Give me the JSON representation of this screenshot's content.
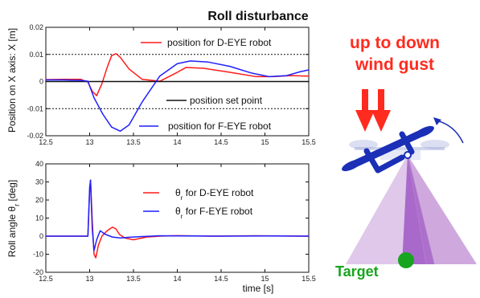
{
  "title": "Roll disturbance",
  "colors": {
    "red": "#ff1a1a",
    "blue": "#1f1fff",
    "black": "#111111",
    "target": "#17a51f",
    "gust": "#ff2b1f",
    "robot": "#1b2fb7",
    "fov_dark": "#a25bc5",
    "fov_light": "#dcc2e8"
  },
  "top_chart": {
    "ylabel": "Position on X axis: X [m]",
    "x_ticks": [
      "12.5",
      "13",
      "13.5",
      "14",
      "14.5",
      "15",
      "15.5"
    ],
    "y_ticks": [
      "0.02",
      "0.01",
      "0",
      "-0.01",
      "-0.02"
    ],
    "legend": [
      {
        "label": "position for D-EYE robot",
        "color": "#ff1a1a"
      },
      {
        "label": "position set point",
        "color": "#111111"
      },
      {
        "label": "position for F-EYE robot",
        "color": "#1f1fff"
      }
    ]
  },
  "bottom_chart": {
    "ylabel_prefix": "Roll angle θ",
    "ylabel_sub": "r",
    "ylabel_suffix": " [deg]",
    "xlabel": "time [s]",
    "x_ticks": [
      "12.5",
      "13",
      "13.5",
      "14",
      "14.5",
      "15",
      "15.5"
    ],
    "y_ticks": [
      "40",
      "30",
      "20",
      "10",
      "0",
      "-10",
      "-20"
    ],
    "legend": [
      {
        "prefix": "θ",
        "sub": "r",
        "suffix": " for D-EYE robot",
        "color": "#ff1a1a"
      },
      {
        "prefix": "θ",
        "sub": "r",
        "suffix": " for F-EYE robot",
        "color": "#1f1fff"
      }
    ]
  },
  "illustration": {
    "gust_line_1": "up to down",
    "gust_line_2": "wind gust",
    "target_label": "Target",
    "robot_icon": "quadrotor-robot-icon",
    "arrow_icon": "down-arrow-icon",
    "target_icon": "target-dot-icon"
  },
  "chart_data": [
    {
      "type": "line",
      "title": "Roll disturbance",
      "xlabel": "",
      "ylabel": "Position on X axis: X [m]",
      "xlim": [
        12.5,
        15.5
      ],
      "ylim": [
        -0.02,
        0.02
      ],
      "grid": false,
      "reference_lines": [
        0.01,
        0,
        -0.01
      ],
      "legend_position": "right",
      "series": [
        {
          "name": "position for D-EYE robot",
          "x": [
            12.5,
            12.7,
            12.9,
            12.98,
            13.03,
            13.08,
            13.14,
            13.2,
            13.25,
            13.3,
            13.35,
            13.45,
            13.6,
            13.8,
            14.0,
            14.1,
            14.3,
            14.6,
            14.9,
            15.1,
            15.3,
            15.5
          ],
          "y": [
            0.0007,
            0.0008,
            0.0008,
            -0.0002,
            -0.0036,
            -0.0052,
            -0.0008,
            0.0052,
            0.0095,
            0.0103,
            0.0089,
            0.0046,
            0.0008,
            0.0001,
            0.0034,
            0.0052,
            0.0049,
            0.0034,
            0.0018,
            0.0018,
            0.0022,
            0.002
          ]
        },
        {
          "name": "position set point",
          "x": [
            12.5,
            15.5
          ],
          "y": [
            0.0,
            0.0
          ]
        },
        {
          "name": "position for F-EYE robot",
          "x": [
            12.5,
            12.7,
            12.9,
            12.98,
            13.05,
            13.15,
            13.25,
            13.35,
            13.45,
            13.6,
            13.8,
            14.0,
            14.15,
            14.35,
            14.6,
            14.85,
            15.05,
            15.25,
            15.4,
            15.5
          ],
          "y": [
            0.0006,
            0.0006,
            0.0004,
            0.0001,
            -0.006,
            -0.012,
            -0.0168,
            -0.0183,
            -0.016,
            -0.0075,
            0.002,
            0.0066,
            0.0076,
            0.0072,
            0.0056,
            0.0031,
            0.0018,
            0.0022,
            0.0036,
            0.0043
          ]
        }
      ]
    },
    {
      "type": "line",
      "xlabel": "time [s]",
      "ylabel": "Roll angle θr [deg]",
      "xlim": [
        12.5,
        15.5
      ],
      "ylim": [
        -20,
        40
      ],
      "grid": false,
      "legend_position": "right",
      "series": [
        {
          "name": "θr for D-EYE robot",
          "x": [
            12.5,
            12.8,
            12.98,
            13.0,
            13.01,
            13.03,
            13.05,
            13.07,
            13.1,
            13.14,
            13.2,
            13.26,
            13.3,
            13.34,
            13.4,
            13.5,
            13.65,
            13.8,
            14.0,
            14.4,
            14.9,
            15.5
          ],
          "y": [
            0.0,
            0.0,
            0.0,
            25.0,
            31.0,
            8.0,
            -10.0,
            -12.0,
            -5.0,
            0.0,
            3.0,
            5.0,
            4.0,
            1.0,
            -1.0,
            -2.0,
            -0.5,
            0.0,
            0.3,
            0.0,
            0.2,
            0.0
          ]
        },
        {
          "name": "θr for F-EYE robot",
          "x": [
            12.5,
            12.8,
            12.98,
            13.0,
            13.01,
            13.03,
            13.05,
            13.08,
            13.12,
            13.18,
            13.26,
            13.35,
            13.45,
            13.6,
            13.8,
            14.1,
            14.5,
            15.0,
            15.5
          ],
          "y": [
            0.0,
            0.0,
            0.0,
            27.0,
            31.0,
            4.0,
            -8.0,
            -2.0,
            3.0,
            1.0,
            -0.5,
            -1.0,
            -0.6,
            -0.2,
            0.2,
            0.1,
            0.0,
            0.1,
            0.0
          ]
        }
      ]
    }
  ]
}
